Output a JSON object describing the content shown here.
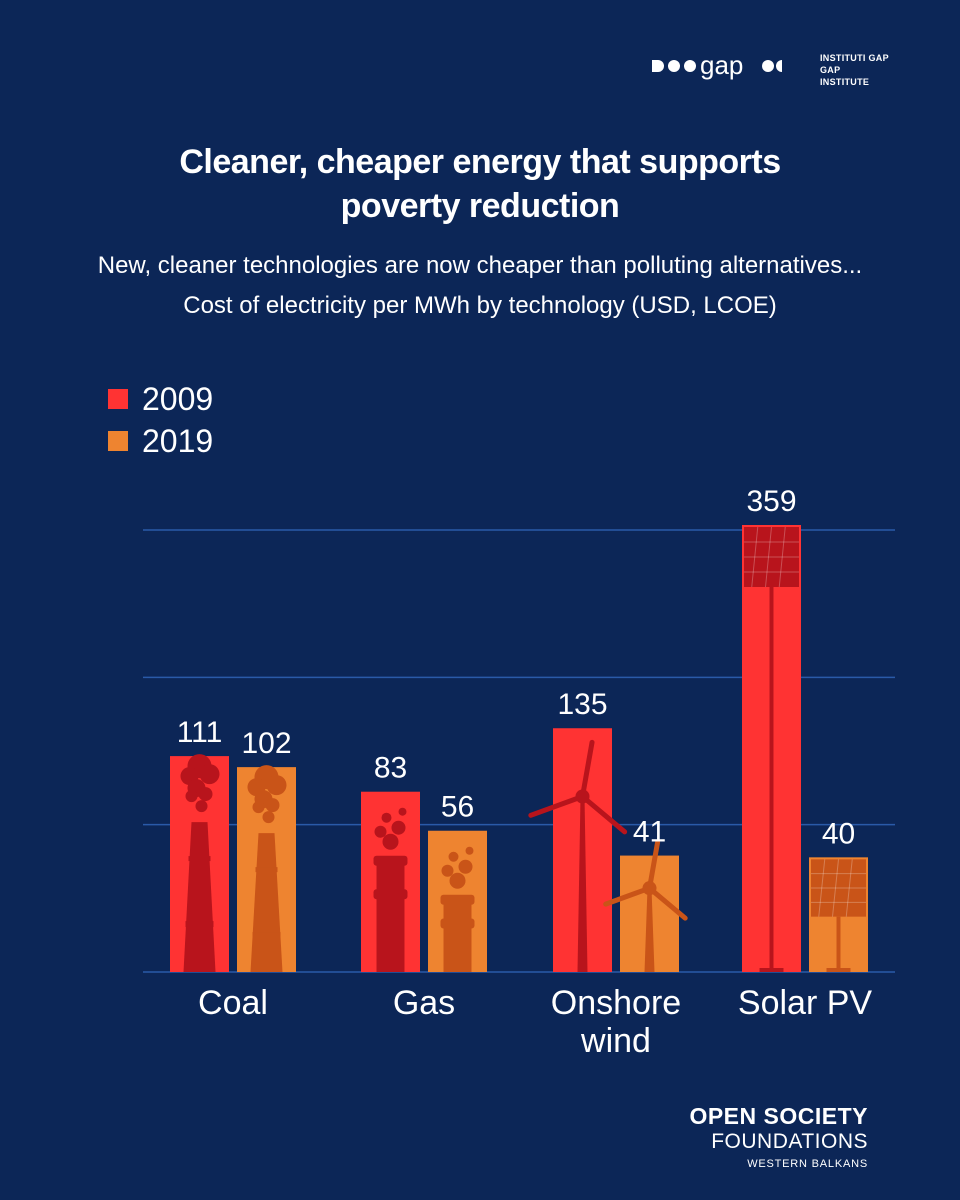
{
  "header": {
    "logo_word": "gap",
    "logo_line1": "INSTITUTI GAP",
    "logo_line2": "GAP INSTITUTE"
  },
  "title_line1": "Cleaner, cheaper energy that supports",
  "title_line2": "poverty reduction",
  "subtitle_line1": "New, cleaner technologies are now cheaper than polluting alternatives...",
  "subtitle_line2": "Cost of electricity per MWh by technology (USD, LCOE)",
  "colors": {
    "background": "#0c2657",
    "y2009": "#ff3333",
    "y2019": "#ee8430",
    "y2009_dark": "#b8141c",
    "y2019_dark": "#c95418",
    "grid": "#2a5aa8"
  },
  "chart_data": {
    "type": "bar",
    "categories": [
      "Coal",
      "Gas",
      "Onshore wind",
      "Solar PV"
    ],
    "category_labels": [
      [
        "Coal"
      ],
      [
        "Gas"
      ],
      [
        "Onshore",
        "wind"
      ],
      [
        "Solar PV"
      ]
    ],
    "series": [
      {
        "name": "2009",
        "values": [
          111,
          83,
          135,
          359
        ],
        "labels": [
          "111",
          "83",
          "135",
          "359"
        ]
      },
      {
        "name": "2019",
        "values": [
          102,
          56,
          41,
          40
        ],
        "labels": [
          "102",
          "56",
          "41",
          "40"
        ]
      }
    ],
    "icons": [
      "smokestack-icon",
      "gas-chimney-icon",
      "wind-turbine-icon",
      "solar-panel-icon"
    ],
    "title": "",
    "xlabel": "",
    "ylabel": "",
    "grid": true,
    "legend_position": "top-left"
  },
  "footer": {
    "line1": "OPEN SOCIETY",
    "line2": "FOUNDATIONS",
    "line3": "WESTERN BALKANS"
  }
}
